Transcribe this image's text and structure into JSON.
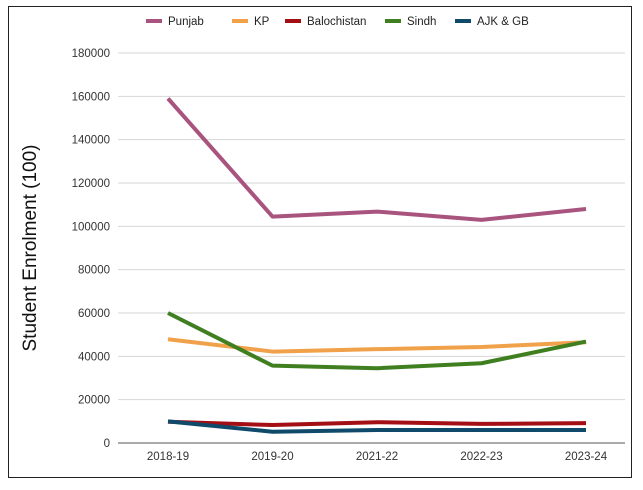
{
  "chart_data": {
    "type": "line",
    "title": "",
    "xlabel": "",
    "ylabel": "Student Enrolment (100)",
    "categories": [
      "2018-19",
      "2019-20",
      "2021-22",
      "2022-23",
      "2023-24"
    ],
    "ylim": [
      0,
      180000
    ],
    "yticks": [
      "0",
      "20000",
      "40000",
      "60000",
      "80000",
      "100000",
      "120000",
      "140000",
      "160000",
      "180000"
    ],
    "grid": true,
    "legend_position": "top",
    "series": [
      {
        "name": "Punjab",
        "color": "#a8547f",
        "values": [
          159000,
          104500,
          106800,
          103000,
          108000
        ]
      },
      {
        "name": "KP",
        "color": "#f0a14a",
        "values": [
          47900,
          42200,
          43300,
          44300,
          46500
        ]
      },
      {
        "name": "Balochistan",
        "color": "#a30f14",
        "values": [
          9800,
          8300,
          9600,
          8800,
          9200
        ]
      },
      {
        "name": "Sindh",
        "color": "#3f7f1f",
        "values": [
          60000,
          35700,
          34500,
          36800,
          46800
        ]
      },
      {
        "name": "AJK & GB",
        "color": "#0f4a6b",
        "values": [
          10000,
          5200,
          6000,
          6000,
          6000
        ]
      }
    ]
  }
}
